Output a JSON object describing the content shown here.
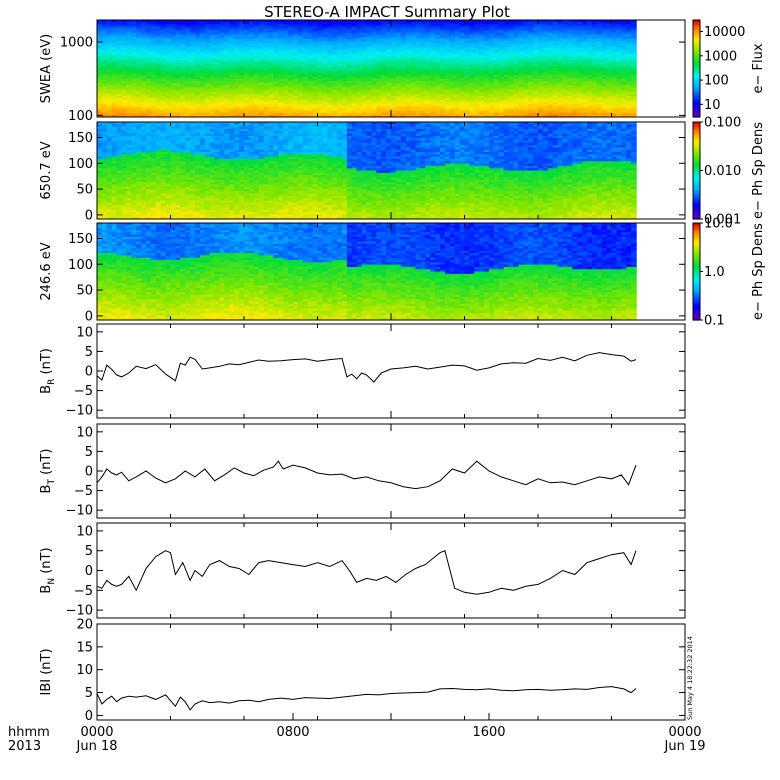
{
  "title": "STEREO-A IMPACT Summary Plot",
  "x_axis": {
    "row1_labels": [
      "hhmm",
      "0000",
      "0800",
      "1600",
      "0000"
    ],
    "row2_labels": [
      "2013",
      "Jun 18",
      "Jun 19"
    ],
    "hours": [
      0,
      8,
      16,
      24
    ]
  },
  "timestamp": "Sun May  4 18:22:32 2014",
  "chart_data": [
    {
      "type": "heatmap",
      "name": "swea",
      "ylabel": "SWEA (eV)",
      "yscale": "log",
      "ylim": [
        95,
        2000
      ],
      "yticks": [
        {
          "v": 1000,
          "label": "1000"
        },
        {
          "v": 100,
          "label": "100"
        }
      ],
      "colorbar": {
        "label": "e− Flux",
        "scale": "log",
        "range": [
          3,
          30000
        ],
        "ticks": [
          {
            "v": 10000,
            "label": "10000"
          },
          {
            "v": 1000,
            "label": "1000"
          },
          {
            "v": 100,
            "label": "100"
          },
          {
            "v": 10,
            "label": "10"
          }
        ]
      },
      "data_end_hours": 22
    },
    {
      "type": "heatmap",
      "name": "pad650",
      "ylabel": "650.7 eV",
      "ylim": [
        -8,
        180
      ],
      "yticks": [
        {
          "v": 150,
          "label": "150"
        },
        {
          "v": 100,
          "label": "100"
        },
        {
          "v": 50,
          "label": "50"
        },
        {
          "v": 0,
          "label": "0"
        }
      ],
      "colorbar": {
        "label": "e− Ph Sp Dens",
        "scale": "log",
        "range": [
          0.001,
          0.1
        ],
        "ticks": [
          {
            "v": 0.1,
            "label": "0.100"
          },
          {
            "v": 0.01,
            "label": "0.010"
          },
          {
            "v": 0.001,
            "label": "0.001"
          }
        ]
      },
      "data_end_hours": 22
    },
    {
      "type": "heatmap",
      "name": "pad246",
      "ylabel": "246.6 eV",
      "ylim": [
        -8,
        180
      ],
      "yticks": [
        {
          "v": 150,
          "label": "150"
        },
        {
          "v": 100,
          "label": "100"
        },
        {
          "v": 50,
          "label": "50"
        },
        {
          "v": 0,
          "label": "0"
        }
      ],
      "colorbar": {
        "label": "e− Ph Sp Dens",
        "scale": "log",
        "range": [
          0.1,
          10
        ],
        "ticks": [
          {
            "v": 10,
            "label": "10.0"
          },
          {
            "v": 1,
            "label": "1.0"
          },
          {
            "v": 0.1,
            "label": "0.1"
          }
        ]
      },
      "data_end_hours": 22
    },
    {
      "type": "line",
      "name": "br",
      "ylabel": "B",
      "ylabel_sub": "R",
      "ylabel_unit": "(nT)",
      "ylim": [
        -12,
        12
      ],
      "yticks": [
        {
          "v": 10,
          "label": "10"
        },
        {
          "v": 5,
          "label": "5"
        },
        {
          "v": 0,
          "label": "0"
        },
        {
          "v": -5,
          "label": "−5"
        },
        {
          "v": -10,
          "label": "−10"
        }
      ],
      "x": [
        0.0,
        0.2,
        0.4,
        0.6,
        0.8,
        1.0,
        1.3,
        1.6,
        2.0,
        2.4,
        2.8,
        3.2,
        3.4,
        3.6,
        3.8,
        4.0,
        4.3,
        4.6,
        5.0,
        5.4,
        5.8,
        6.2,
        6.6,
        7.0,
        7.5,
        8.0,
        8.5,
        9.0,
        9.5,
        10.0,
        10.2,
        10.4,
        10.6,
        10.8,
        11.0,
        11.3,
        11.6,
        12.0,
        12.5,
        13.0,
        13.5,
        14.0,
        14.5,
        15.0,
        15.5,
        16.0,
        16.5,
        17.0,
        17.5,
        18.0,
        18.5,
        19.0,
        19.5,
        20.0,
        20.5,
        21.0,
        21.5,
        21.8,
        22.0
      ],
      "values": [
        -1.2,
        -2.3,
        1.5,
        0.4,
        -1.0,
        -1.5,
        -0.5,
        1.2,
        0.6,
        1.6,
        -0.8,
        -2.5,
        2.0,
        1.5,
        3.5,
        3.0,
        0.5,
        0.8,
        1.2,
        1.8,
        1.6,
        2.2,
        2.8,
        2.5,
        2.6,
        2.9,
        3.1,
        2.5,
        2.9,
        3.2,
        -1.5,
        -0.8,
        -2.0,
        -0.5,
        -1.0,
        -2.8,
        -0.5,
        0.5,
        0.8,
        1.2,
        0.5,
        1.0,
        1.5,
        1.3,
        0.2,
        0.8,
        1.8,
        2.1,
        2.0,
        3.2,
        2.7,
        3.5,
        2.6,
        4.0,
        4.7,
        4.2,
        3.8,
        2.5,
        2.9
      ]
    },
    {
      "type": "line",
      "name": "bt",
      "ylabel": "B",
      "ylabel_sub": "T",
      "ylabel_unit": "(nT)",
      "ylim": [
        -12,
        12
      ],
      "yticks": [
        {
          "v": 10,
          "label": "10"
        },
        {
          "v": 5,
          "label": "5"
        },
        {
          "v": 0,
          "label": "0"
        },
        {
          "v": -5,
          "label": "−5"
        },
        {
          "v": -10,
          "label": "−10"
        }
      ],
      "x": [
        0.0,
        0.2,
        0.4,
        0.6,
        0.8,
        1.0,
        1.3,
        1.6,
        2.0,
        2.4,
        2.8,
        3.2,
        3.6,
        4.0,
        4.4,
        4.8,
        5.2,
        5.6,
        6.0,
        6.4,
        6.8,
        7.2,
        7.4,
        7.6,
        8.0,
        8.5,
        9.0,
        9.5,
        10.0,
        10.5,
        11.0,
        11.5,
        12.0,
        12.5,
        13.0,
        13.5,
        14.0,
        14.5,
        15.0,
        15.5,
        16.0,
        16.5,
        17.0,
        17.5,
        18.0,
        18.5,
        19.0,
        19.5,
        20.0,
        20.5,
        21.0,
        21.4,
        21.7,
        22.0
      ],
      "values": [
        -3.0,
        -1.5,
        0.5,
        -0.5,
        -1.0,
        -0.3,
        -2.5,
        -1.5,
        0.0,
        -1.8,
        -3.0,
        -2.0,
        0.0,
        -1.5,
        0.5,
        -2.5,
        -1.0,
        0.8,
        -0.5,
        -1.2,
        0.2,
        1.0,
        2.5,
        0.5,
        1.5,
        0.8,
        -0.5,
        -1.0,
        -0.8,
        -2.0,
        -1.5,
        -2.5,
        -3.0,
        -4.0,
        -4.5,
        -4.0,
        -2.5,
        0.5,
        -0.5,
        2.5,
        0.0,
        -1.5,
        -2.5,
        -3.5,
        -2.0,
        -3.0,
        -2.8,
        -3.5,
        -2.5,
        -1.5,
        -2.0,
        -1.0,
        -3.5,
        1.5
      ]
    },
    {
      "type": "line",
      "name": "bn",
      "ylabel": "B",
      "ylabel_sub": "N",
      "ylabel_unit": "(nT)",
      "ylim": [
        -12,
        12
      ],
      "yticks": [
        {
          "v": 10,
          "label": "10"
        },
        {
          "v": 5,
          "label": "5"
        },
        {
          "v": 0,
          "label": "0"
        },
        {
          "v": -5,
          "label": "−5"
        },
        {
          "v": -10,
          "label": "−10"
        }
      ],
      "x": [
        0.0,
        0.2,
        0.4,
        0.6,
        0.8,
        1.0,
        1.3,
        1.6,
        2.0,
        2.4,
        2.8,
        3.0,
        3.2,
        3.5,
        3.8,
        4.0,
        4.3,
        4.6,
        5.0,
        5.4,
        5.8,
        6.2,
        6.6,
        7.0,
        7.5,
        8.0,
        8.5,
        9.0,
        9.5,
        10.0,
        10.3,
        10.6,
        11.0,
        11.4,
        11.8,
        12.2,
        12.6,
        13.0,
        13.4,
        13.8,
        14.0,
        14.2,
        14.6,
        15.0,
        15.5,
        16.0,
        16.5,
        17.0,
        17.5,
        18.0,
        18.5,
        19.0,
        19.5,
        20.0,
        20.5,
        21.0,
        21.5,
        21.8,
        22.0
      ],
      "values": [
        -4.0,
        -4.5,
        -2.5,
        -3.5,
        -4.0,
        -3.5,
        -1.5,
        -5.0,
        0.5,
        3.5,
        5.0,
        4.5,
        -1.0,
        2.0,
        -2.5,
        0.0,
        -1.5,
        1.5,
        2.5,
        1.0,
        0.5,
        -1.0,
        2.0,
        2.5,
        2.0,
        1.5,
        1.0,
        2.0,
        1.0,
        2.5,
        0.0,
        -3.0,
        -2.0,
        -2.5,
        -1.5,
        -3.0,
        -1.0,
        0.5,
        1.5,
        3.5,
        4.5,
        5.0,
        -4.5,
        -5.5,
        -6.0,
        -5.5,
        -4.5,
        -5.0,
        -4.0,
        -3.5,
        -2.0,
        0.0,
        -1.0,
        2.0,
        3.0,
        4.0,
        4.5,
        1.5,
        5.0
      ]
    },
    {
      "type": "line",
      "name": "bmag",
      "ylabel": "IBI",
      "ylabel_unit": "(nT)",
      "ylim": [
        -1,
        20
      ],
      "yticks": [
        {
          "v": 20,
          "label": "20"
        },
        {
          "v": 15,
          "label": "15"
        },
        {
          "v": 10,
          "label": "10"
        },
        {
          "v": 5,
          "label": "5"
        },
        {
          "v": 0,
          "label": "0"
        }
      ],
      "x": [
        0.0,
        0.2,
        0.4,
        0.6,
        0.8,
        1.0,
        1.3,
        1.6,
        2.0,
        2.4,
        2.8,
        3.2,
        3.4,
        3.6,
        3.8,
        4.0,
        4.3,
        4.6,
        5.0,
        5.4,
        5.8,
        6.2,
        6.6,
        7.0,
        7.5,
        8.0,
        8.5,
        9.0,
        9.5,
        10.0,
        10.5,
        11.0,
        11.5,
        12.0,
        12.5,
        13.0,
        13.5,
        14.0,
        14.5,
        15.0,
        15.5,
        16.0,
        16.5,
        17.0,
        17.5,
        18.0,
        18.5,
        19.0,
        19.5,
        20.0,
        20.5,
        21.0,
        21.5,
        21.8,
        22.0
      ],
      "values": [
        4.8,
        2.5,
        3.5,
        4.2,
        3.0,
        3.8,
        4.2,
        4.0,
        4.3,
        3.5,
        4.5,
        2.0,
        4.0,
        3.0,
        1.2,
        2.5,
        3.2,
        2.8,
        3.0,
        2.7,
        3.2,
        3.3,
        3.0,
        3.5,
        3.8,
        3.5,
        3.9,
        3.8,
        3.7,
        4.0,
        4.3,
        4.6,
        4.5,
        4.8,
        4.9,
        5.0,
        5.1,
        5.8,
        5.9,
        5.7,
        5.6,
        5.8,
        5.5,
        5.4,
        5.6,
        5.7,
        5.5,
        5.6,
        5.8,
        5.7,
        6.1,
        6.3,
        5.8,
        5.0,
        5.9
      ]
    }
  ]
}
